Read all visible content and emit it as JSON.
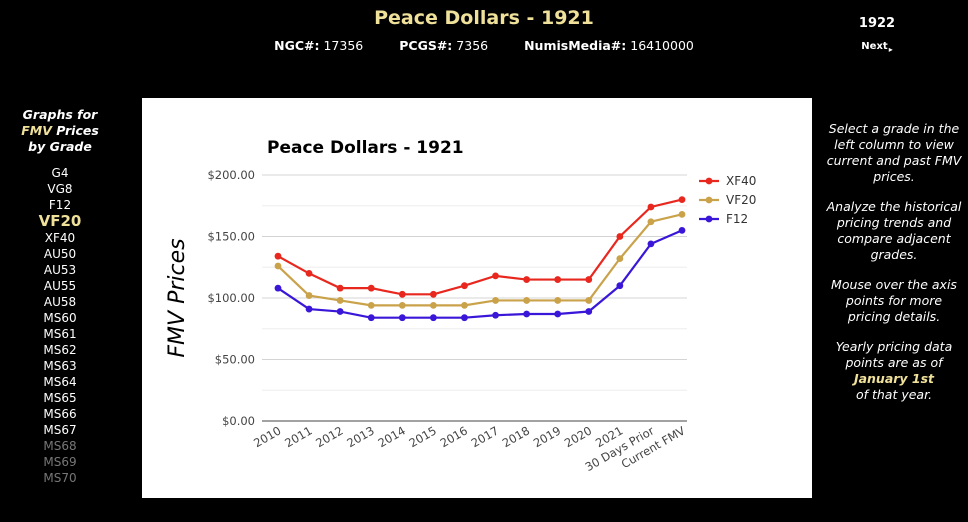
{
  "header": {
    "title": "Peace Dollars - 1921",
    "ngc_label": "NGC#:",
    "ngc_value": "17356",
    "pcgs_label": "PCGS#:",
    "pcgs_value": "7356",
    "numismedia_label": "NumisMedia#:",
    "numismedia_value": "16410000",
    "next_year": "1922",
    "next_label": "Next",
    "next_arrow": "▸"
  },
  "left_panel": {
    "heading_line1": "Graphs for",
    "heading_fmv": "FMV",
    "heading_line2_rest": " Prices",
    "heading_line3": "by Grade",
    "grades": [
      {
        "label": "G4",
        "state": "normal"
      },
      {
        "label": "VG8",
        "state": "normal"
      },
      {
        "label": "F12",
        "state": "normal"
      },
      {
        "label": "VF20",
        "state": "selected"
      },
      {
        "label": "XF40",
        "state": "normal"
      },
      {
        "label": "AU50",
        "state": "normal"
      },
      {
        "label": "AU53",
        "state": "normal"
      },
      {
        "label": "AU55",
        "state": "normal"
      },
      {
        "label": "AU58",
        "state": "normal"
      },
      {
        "label": "MS60",
        "state": "normal"
      },
      {
        "label": "MS61",
        "state": "normal"
      },
      {
        "label": "MS62",
        "state": "normal"
      },
      {
        "label": "MS63",
        "state": "normal"
      },
      {
        "label": "MS64",
        "state": "normal"
      },
      {
        "label": "MS65",
        "state": "normal"
      },
      {
        "label": "MS66",
        "state": "normal"
      },
      {
        "label": "MS67",
        "state": "normal"
      },
      {
        "label": "MS68",
        "state": "disabled"
      },
      {
        "label": "MS69",
        "state": "disabled"
      },
      {
        "label": "MS70",
        "state": "disabled"
      }
    ]
  },
  "right_panel": {
    "p1": "Select a grade in the left column to view current and past FMV prices.",
    "p2": "Analyze the historical pricing trends and compare adjacent grades.",
    "p3": "Mouse over the axis points for more pricing details.",
    "p4_pre": "Yearly pricing data points are as of",
    "p4_date": "January 1st",
    "p4_post": "of that year."
  },
  "colors": {
    "background": "#000000",
    "accent": "#f0e19a",
    "xf40": "#e8281e",
    "vf20": "#c9a24a",
    "f12": "#3a16d8"
  },
  "chart_data": {
    "type": "line",
    "title": "Peace Dollars - 1921",
    "xlabel": "",
    "ylabel": "FMV Prices",
    "categories": [
      "2010",
      "2011",
      "2012",
      "2013",
      "2014",
      "2015",
      "2016",
      "2017",
      "2018",
      "2019",
      "2020",
      "2021",
      "30 Days Prior",
      "Current FMV"
    ],
    "yticks": [
      "$200.00",
      "$150.00",
      "$100.00",
      "$50.00",
      "$0.00"
    ],
    "ylim": [
      0,
      200
    ],
    "grid": true,
    "legend_position": "right",
    "series": [
      {
        "name": "XF40",
        "color": "#e8281e",
        "values": [
          134,
          120,
          108,
          108,
          103,
          103,
          110,
          118,
          115,
          115,
          115,
          150,
          174,
          180
        ]
      },
      {
        "name": "VF20",
        "color": "#c9a24a",
        "values": [
          126,
          102,
          98,
          94,
          94,
          94,
          94,
          98,
          98,
          98,
          98,
          132,
          162,
          168
        ]
      },
      {
        "name": "F12",
        "color": "#3a16d8",
        "values": [
          108,
          91,
          89,
          84,
          84,
          84,
          84,
          86,
          87,
          87,
          89,
          110,
          144,
          155
        ]
      }
    ]
  }
}
